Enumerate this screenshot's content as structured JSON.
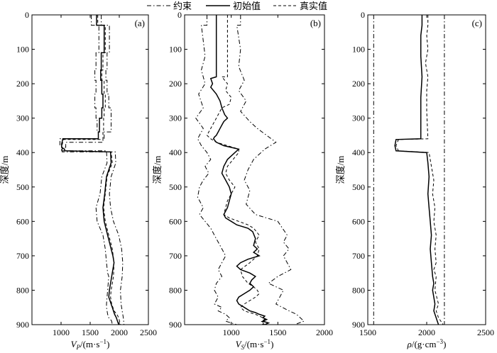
{
  "legend": {
    "placement": "top-center",
    "items": [
      {
        "label": "约束",
        "style": "dashdot"
      },
      {
        "label": "初始值",
        "style": "solid"
      },
      {
        "label": "真实值",
        "style": "dashed"
      }
    ]
  },
  "chart_data": [
    {
      "type": "line",
      "panel_label": "(a)",
      "ylabel": "深度/m",
      "xlabel_main": "V",
      "xlabel_sub": "P",
      "xlabel_unit": "/(m·s",
      "xlabel_sup": "−1",
      "xlabel_close": ")",
      "xlim": [
        500,
        2500
      ],
      "ylim": [
        900,
        0
      ],
      "xticks": [
        "1000",
        "1500",
        "2000",
        "2500"
      ],
      "yticks": [
        "0",
        "100",
        "200",
        "300",
        "400",
        "500",
        "600",
        "700",
        "800",
        "900"
      ],
      "grid": false,
      "series": [
        {
          "name": "约束",
          "style": "dashdot",
          "x": [
            1520,
            1520,
            1650,
            1650,
            1600,
            1600,
            1580,
            1580,
            1600,
            1600,
            1580,
            1580,
            1600,
            1600,
            1620,
            1620,
            1640,
            1640,
            980,
            980,
            1010,
            1010,
            1780,
            1790,
            1700,
            1670,
            1600,
            1620,
            1720,
            1760,
            1780,
            1800,
            1820,
            1800,
            1780,
            1780,
            1800,
            1820,
            1850,
            1870,
            1880
          ],
          "y": [
            0,
            30,
            30,
            110,
            110,
            160,
            160,
            190,
            190,
            230,
            230,
            270,
            270,
            300,
            300,
            340,
            340,
            360,
            360,
            380,
            380,
            395,
            395,
            430,
            470,
            520,
            560,
            600,
            640,
            680,
            720,
            750,
            760,
            800,
            840,
            850,
            870,
            880,
            885,
            890,
            900
          ]
        },
        {
          "name": "约束",
          "style": "dashdot",
          "x": [
            1690,
            1690,
            1830,
            1830,
            1790,
            1790,
            1770,
            1770,
            1790,
            1790,
            1820,
            1820,
            1860,
            1860,
            1740,
            1740,
            1720,
            1720,
            1080,
            1080,
            1020,
            1020,
            1930,
            1940,
            1860,
            1830,
            1850,
            1900,
            1990,
            2040,
            2060,
            2050,
            2020,
            2030,
            2050,
            2070,
            2080
          ],
          "y": [
            0,
            30,
            30,
            110,
            110,
            160,
            160,
            190,
            190,
            230,
            230,
            270,
            270,
            340,
            340,
            360,
            360,
            370,
            370,
            385,
            385,
            398,
            398,
            430,
            470,
            520,
            560,
            600,
            640,
            680,
            720,
            760,
            800,
            840,
            860,
            880,
            900
          ]
        },
        {
          "name": "初始值",
          "style": "solid",
          "x": [
            1610,
            1610,
            1740,
            1740,
            1690,
            1690,
            1680,
            1680,
            1700,
            1700,
            1720,
            1720,
            1700,
            1700,
            1660,
            1660,
            1640,
            1640,
            1030,
            1010,
            1010,
            1060,
            1060,
            1850,
            1860,
            1780,
            1750,
            1720,
            1740,
            1800,
            1860,
            1890,
            1910,
            1870,
            1850,
            1830,
            1820,
            1840,
            1860,
            1880,
            1900,
            1920,
            1950,
            1970,
            1990
          ],
          "y": [
            0,
            30,
            30,
            110,
            110,
            160,
            160,
            190,
            190,
            230,
            230,
            270,
            270,
            300,
            300,
            340,
            340,
            360,
            360,
            375,
            385,
            390,
            395,
            398,
            430,
            470,
            520,
            560,
            600,
            640,
            680,
            700,
            720,
            760,
            780,
            800,
            820,
            830,
            840,
            850,
            860,
            870,
            880,
            890,
            900
          ]
        },
        {
          "name": "真实值",
          "style": "dashed",
          "x": [
            1630,
            1630,
            1760,
            1760,
            1720,
            1720,
            1700,
            1700,
            1740,
            1740,
            1760,
            1760,
            1740,
            1740,
            1730,
            1730,
            1720,
            1720,
            1040,
            1020,
            1020,
            1080,
            1860,
            1880,
            1790,
            1760,
            1730,
            1760,
            1820,
            1880,
            1910,
            1900,
            1880,
            1860,
            1850,
            1870,
            1890,
            1910,
            1960,
            1990,
            2020
          ],
          "y": [
            0,
            30,
            30,
            110,
            110,
            160,
            160,
            190,
            190,
            230,
            230,
            270,
            270,
            300,
            300,
            340,
            340,
            362,
            362,
            377,
            390,
            395,
            398,
            430,
            470,
            520,
            560,
            600,
            640,
            680,
            720,
            760,
            780,
            800,
            820,
            840,
            850,
            860,
            870,
            880,
            900
          ]
        }
      ]
    },
    {
      "type": "line",
      "panel_label": "(b)",
      "ylabel": "深度/m",
      "xlabel_main": "V",
      "xlabel_sub": "S",
      "xlabel_unit": "/(m·s",
      "xlabel_sup": "−1",
      "xlabel_close": ")",
      "xlim": [
        500,
        2000
      ],
      "ylim": [
        900,
        0
      ],
      "xticks": [
        "1000",
        "1500",
        "2000"
      ],
      "yticks": [
        "0",
        "100",
        "200",
        "300",
        "400",
        "500",
        "600",
        "700",
        "800",
        "900"
      ],
      "grid": false,
      "series": [
        {
          "name": "约束",
          "style": "dashdot",
          "x": [
            740,
            740,
            680,
            720,
            680,
            720,
            650,
            700,
            620,
            700,
            640,
            680,
            740,
            780,
            720,
            760,
            700,
            660,
            640,
            700,
            660,
            720,
            780,
            820,
            880,
            940,
            900,
            860,
            900,
            840,
            820,
            860,
            820,
            900,
            860,
            940,
            980,
            940,
            1000,
            1060,
            1040,
            1100,
            1100,
            1140
          ],
          "y": [
            0,
            30,
            30,
            120,
            160,
            200,
            230,
            270,
            300,
            330,
            360,
            380,
            400,
            420,
            440,
            460,
            480,
            500,
            530,
            560,
            580,
            600,
            620,
            640,
            670,
            700,
            720,
            740,
            760,
            780,
            800,
            820,
            840,
            850,
            860,
            870,
            880,
            890,
            895,
            900,
            900,
            900,
            900,
            900
          ]
        },
        {
          "name": "约束",
          "style": "dashdot",
          "x": [
            1100,
            1100,
            1060,
            1100,
            1080,
            1140,
            1080,
            1160,
            1100,
            1200,
            1280,
            1480,
            1360,
            1240,
            1180,
            1140,
            1200,
            1160,
            1260,
            1380,
            1500,
            1600,
            1560,
            1620,
            1560,
            1640,
            1500,
            1400,
            1560,
            1520,
            1480,
            1620,
            1700,
            1740,
            1780,
            1680
          ],
          "y": [
            0,
            30,
            30,
            100,
            150,
            190,
            220,
            250,
            280,
            310,
            330,
            370,
            390,
            420,
            450,
            480,
            510,
            550,
            580,
            590,
            600,
            640,
            660,
            680,
            700,
            740,
            760,
            780,
            800,
            820,
            840,
            860,
            870,
            880,
            890,
            900
          ]
        },
        {
          "name": "初始值",
          "style": "solid",
          "x": [
            840,
            840,
            780,
            800,
            780,
            840,
            880,
            900,
            930,
            960,
            920,
            900,
            880,
            860,
            840,
            820,
            810,
            840,
            920,
            1080,
            1040,
            960,
            920,
            900,
            940,
            980,
            1000,
            980,
            960,
            940,
            920,
            940,
            1000,
            1060,
            1180,
            1230,
            1260,
            1240,
            1280,
            1240,
            1300,
            1240,
            1180,
            1100,
            1060,
            1100,
            1200,
            1260,
            1220,
            1200,
            1240,
            1200,
            1140,
            1080,
            1060,
            1080,
            1140,
            1200,
            1260,
            1300,
            1360,
            1340,
            1380,
            1340,
            1400,
            1360
          ],
          "y": [
            0,
            180,
            185,
            200,
            210,
            230,
            250,
            270,
            290,
            300,
            310,
            320,
            330,
            340,
            350,
            355,
            360,
            370,
            380,
            390,
            400,
            420,
            440,
            460,
            480,
            500,
            520,
            540,
            560,
            570,
            580,
            590,
            600,
            610,
            620,
            630,
            650,
            670,
            680,
            690,
            700,
            705,
            710,
            720,
            730,
            740,
            750,
            760,
            770,
            780,
            790,
            800,
            810,
            820,
            830,
            840,
            850,
            860,
            865,
            870,
            875,
            880,
            885,
            890,
            895,
            900
          ]
        },
        {
          "name": "真实值",
          "style": "dashed",
          "x": [
            960,
            960,
            900,
            960,
            940,
            1000,
            980,
            900,
            880,
            860,
            840,
            820,
            800,
            780,
            760,
            740,
            780,
            840,
            960,
            1080,
            1080,
            1020,
            960,
            940,
            980,
            1040,
            1000,
            960,
            940,
            920,
            980,
            1080,
            1180,
            1240,
            1300,
            1260,
            1300,
            1280,
            1240,
            1200,
            1100,
            1120,
            1180,
            1240,
            1280,
            1300,
            1260,
            1200,
            1140,
            1100,
            1140,
            1200,
            1260,
            1300,
            1340,
            1360,
            1320,
            1360,
            1340,
            1380
          ],
          "y": [
            0,
            180,
            180,
            200,
            220,
            240,
            260,
            270,
            280,
            290,
            300,
            310,
            320,
            330,
            340,
            350,
            360,
            370,
            380,
            390,
            400,
            420,
            440,
            460,
            480,
            500,
            520,
            540,
            560,
            580,
            590,
            600,
            610,
            620,
            640,
            660,
            680,
            700,
            710,
            720,
            740,
            760,
            780,
            790,
            800,
            810,
            820,
            830,
            840,
            850,
            860,
            865,
            870,
            875,
            880,
            885,
            890,
            895,
            898,
            900
          ]
        }
      ]
    },
    {
      "type": "line",
      "panel_label": "(c)",
      "ylabel": "深度/m",
      "xlabel_main": "ρ",
      "xlabel_sub": "",
      "xlabel_unit": "/(g·cm",
      "xlabel_sup": "−3",
      "xlabel_close": ")",
      "xlim": [
        1500,
        2500
      ],
      "ylim": [
        900,
        0
      ],
      "xticks": [
        "1500",
        "2000",
        "2500"
      ],
      "yticks": [
        "0",
        "100",
        "200",
        "300",
        "400",
        "500",
        "600",
        "700",
        "800",
        "900"
      ],
      "grid": false,
      "series": [
        {
          "name": "约束",
          "style": "dashdot",
          "x": [
            1550,
            1550
          ],
          "y": [
            0,
            900
          ]
        },
        {
          "name": "约束",
          "style": "dashdot",
          "x": [
            2150,
            2150
          ],
          "y": [
            0,
            900
          ]
        },
        {
          "name": "初始值",
          "style": "solid",
          "x": [
            1960,
            1960,
            1950,
            1950,
            1960,
            1950,
            1950,
            1950,
            1740,
            1730,
            1740,
            2000,
            2010,
            2020,
            2010,
            2020,
            2030,
            2040,
            2030,
            2040,
            2050,
            2060,
            2050,
            2060,
            2070,
            2060,
            2080,
            2090,
            2100
          ],
          "y": [
            0,
            30,
            60,
            120,
            180,
            240,
            300,
            360,
            362,
            380,
            395,
            400,
            430,
            470,
            520,
            560,
            600,
            640,
            680,
            720,
            760,
            780,
            800,
            820,
            840,
            860,
            880,
            890,
            900
          ]
        },
        {
          "name": "真实值",
          "style": "dashed",
          "x": [
            2010,
            2010,
            2000,
            2010,
            1990,
            2010,
            2000,
            2000,
            2010,
            1760,
            1740,
            1760,
            2020,
            2040,
            2060,
            2050,
            2070,
            2060,
            2080,
            2070,
            2080,
            2060,
            2080,
            2070,
            2100,
            2080,
            2100,
            2120,
            2140
          ],
          "y": [
            0,
            30,
            60,
            100,
            140,
            180,
            220,
            280,
            360,
            362,
            380,
            395,
            400,
            440,
            480,
            520,
            560,
            600,
            640,
            680,
            720,
            740,
            760,
            800,
            840,
            860,
            880,
            890,
            900
          ]
        }
      ]
    }
  ]
}
